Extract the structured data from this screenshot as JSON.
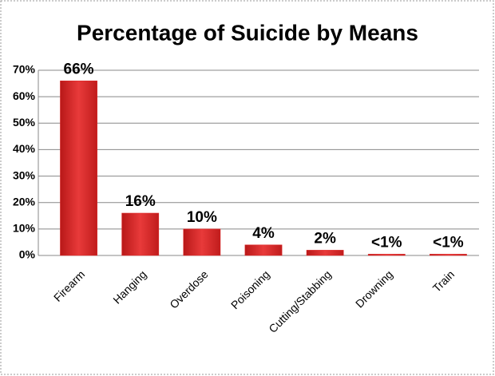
{
  "chart_data": {
    "type": "bar",
    "title": "Percentage of Suicide by Means",
    "categories": [
      "Firearm",
      "Hanging",
      "Overdose",
      "Poisoning",
      "Cutting/Stabbing",
      "Drowning",
      "Train"
    ],
    "values": [
      66,
      16,
      10,
      4,
      2,
      0.5,
      0.5
    ],
    "value_labels": [
      "66%",
      "16%",
      "10%",
      "4%",
      "2%",
      "<1%",
      "<1%"
    ],
    "color": "#e02a2a",
    "ylim": [
      0,
      70
    ],
    "yticks": [
      {
        "value": 0,
        "label": "0%"
      },
      {
        "value": 10,
        "label": "10%"
      },
      {
        "value": 20,
        "label": "20%"
      },
      {
        "value": 30,
        "label": "30%"
      },
      {
        "value": 40,
        "label": "40%"
      },
      {
        "value": 50,
        "label": "50%"
      },
      {
        "value": 60,
        "label": "60%"
      },
      {
        "value": 70,
        "label": "70%"
      }
    ],
    "grid": true
  }
}
